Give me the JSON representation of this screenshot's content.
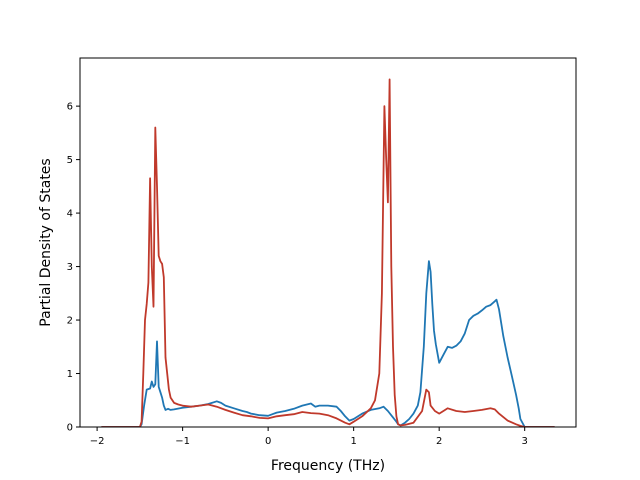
{
  "chart_data": {
    "type": "line",
    "xlabel": "Frequency (THz)",
    "ylabel": "Partial Density of States",
    "xlim": [
      -2.2,
      3.6
    ],
    "ylim": [
      0,
      6.9
    ],
    "xticks": [
      -2,
      -1,
      0,
      1,
      2,
      3
    ],
    "yticks": [
      0,
      1,
      2,
      3,
      4,
      5,
      6
    ],
    "grid": false,
    "colors": [
      "#1f77b4",
      "#c0392b"
    ],
    "series": [
      {
        "color": "#1f77b4",
        "x": [
          -1.95,
          -1.5,
          -1.48,
          -1.45,
          -1.42,
          -1.38,
          -1.36,
          -1.34,
          -1.32,
          -1.3,
          -1.28,
          -1.26,
          -1.24,
          -1.22,
          -1.2,
          -1.17,
          -1.14,
          -1.1,
          -1.0,
          -0.9,
          -0.8,
          -0.7,
          -0.6,
          -0.55,
          -0.5,
          -0.4,
          -0.3,
          -0.25,
          -0.2,
          -0.1,
          0.0,
          0.05,
          0.1,
          0.2,
          0.3,
          0.4,
          0.5,
          0.55,
          0.6,
          0.7,
          0.8,
          0.85,
          0.9,
          0.95,
          1.0,
          1.1,
          1.2,
          1.3,
          1.35,
          1.4,
          1.45,
          1.5,
          1.52,
          1.55,
          1.6,
          1.65,
          1.7,
          1.75,
          1.78,
          1.82,
          1.85,
          1.88,
          1.9,
          1.92,
          1.94,
          1.96,
          2.0,
          2.05,
          2.1,
          2.15,
          2.2,
          2.25,
          2.3,
          2.35,
          2.4,
          2.45,
          2.5,
          2.55,
          2.6,
          2.65,
          2.67,
          2.7,
          2.75,
          2.8,
          2.85,
          2.9,
          2.93,
          2.95,
          3.0,
          3.35
        ],
        "y": [
          0,
          0,
          0.05,
          0.4,
          0.7,
          0.72,
          0.85,
          0.75,
          0.8,
          1.6,
          0.75,
          0.65,
          0.55,
          0.4,
          0.32,
          0.34,
          0.32,
          0.33,
          0.36,
          0.38,
          0.4,
          0.43,
          0.48,
          0.45,
          0.4,
          0.35,
          0.3,
          0.28,
          0.25,
          0.22,
          0.21,
          0.24,
          0.27,
          0.3,
          0.34,
          0.4,
          0.44,
          0.38,
          0.4,
          0.4,
          0.38,
          0.3,
          0.2,
          0.12,
          0.15,
          0.25,
          0.32,
          0.35,
          0.38,
          0.3,
          0.2,
          0.1,
          0.05,
          0.03,
          0.08,
          0.15,
          0.25,
          0.4,
          0.65,
          1.5,
          2.5,
          3.1,
          2.9,
          2.3,
          1.8,
          1.55,
          1.2,
          1.35,
          1.5,
          1.48,
          1.52,
          1.6,
          1.75,
          2.0,
          2.08,
          2.12,
          2.18,
          2.25,
          2.28,
          2.35,
          2.38,
          2.2,
          1.7,
          1.3,
          0.95,
          0.6,
          0.35,
          0.15,
          0.0,
          0.0
        ]
      },
      {
        "color": "#c0392b",
        "x": [
          -1.95,
          -1.5,
          -1.48,
          -1.46,
          -1.44,
          -1.42,
          -1.4,
          -1.38,
          -1.36,
          -1.34,
          -1.32,
          -1.3,
          -1.28,
          -1.26,
          -1.24,
          -1.22,
          -1.2,
          -1.18,
          -1.16,
          -1.14,
          -1.1,
          -1.05,
          -1.0,
          -0.9,
          -0.8,
          -0.7,
          -0.6,
          -0.5,
          -0.4,
          -0.3,
          -0.2,
          -0.1,
          0.0,
          0.1,
          0.2,
          0.3,
          0.4,
          0.5,
          0.6,
          0.7,
          0.8,
          0.9,
          0.95,
          1.0,
          1.1,
          1.2,
          1.25,
          1.3,
          1.33,
          1.36,
          1.38,
          1.4,
          1.42,
          1.44,
          1.46,
          1.48,
          1.5,
          1.52,
          1.55,
          1.6,
          1.7,
          1.8,
          1.85,
          1.88,
          1.9,
          1.95,
          2.0,
          2.05,
          2.1,
          2.2,
          2.3,
          2.4,
          2.5,
          2.6,
          2.65,
          2.7,
          2.8,
          2.9,
          2.95,
          3.0,
          3.35
        ],
        "y": [
          0,
          0,
          0.1,
          1.0,
          2.0,
          2.3,
          2.7,
          4.65,
          3.0,
          2.25,
          5.6,
          4.5,
          3.2,
          3.1,
          3.05,
          2.8,
          1.3,
          1.0,
          0.7,
          0.55,
          0.45,
          0.42,
          0.4,
          0.38,
          0.4,
          0.42,
          0.38,
          0.32,
          0.27,
          0.22,
          0.2,
          0.17,
          0.16,
          0.2,
          0.22,
          0.24,
          0.28,
          0.26,
          0.25,
          0.22,
          0.16,
          0.08,
          0.05,
          0.1,
          0.2,
          0.35,
          0.5,
          1.0,
          2.5,
          6.0,
          5.0,
          4.2,
          6.5,
          3.0,
          1.5,
          0.6,
          0.2,
          0.05,
          0.03,
          0.04,
          0.08,
          0.3,
          0.7,
          0.65,
          0.4,
          0.3,
          0.25,
          0.3,
          0.35,
          0.3,
          0.28,
          0.3,
          0.32,
          0.35,
          0.33,
          0.25,
          0.12,
          0.05,
          0.02,
          0.0,
          0.0
        ]
      }
    ]
  }
}
